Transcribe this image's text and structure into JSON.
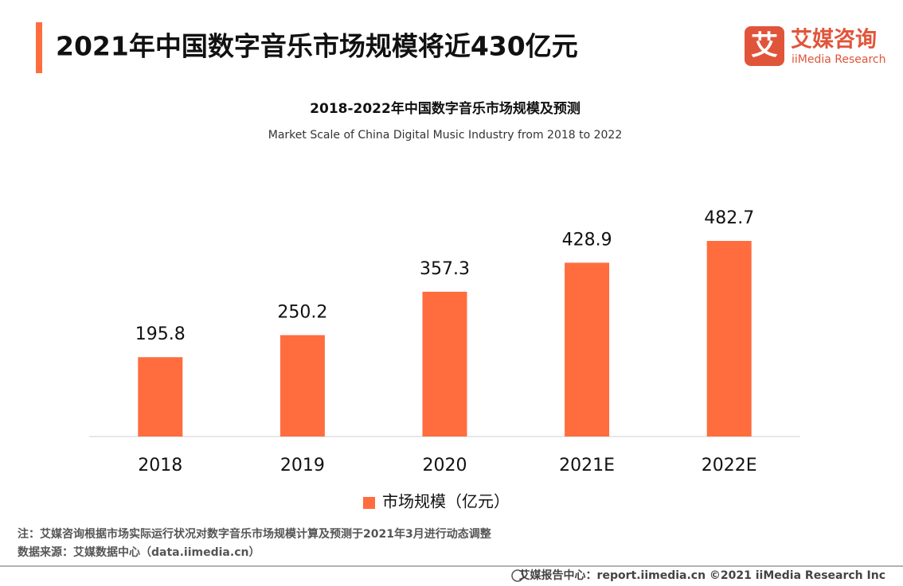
{
  "header": {
    "title": "2021年中国数字音乐市场规模将近430亿元"
  },
  "logo": {
    "icon": "艾",
    "name": "艾媒咨询",
    "english": "iiMedia Research"
  },
  "chart_data": {
    "type": "bar",
    "title": "2018-2022年中国数字音乐市场规模及预测",
    "subtitle": "Market Scale of China Digital Music Industry from 2018 to 2022",
    "categories": [
      "2018",
      "2019",
      "2020",
      "2021E",
      "2022E"
    ],
    "series": [
      {
        "name": "市场规模（亿元）",
        "color": "#ff6d3f",
        "values": [
          195.8,
          250.2,
          357.3,
          428.9,
          482.7
        ]
      }
    ]
  },
  "notes": [
    "注：艾媒咨询根据市场实际运行状况对数字音乐市场规模计算及预测于2021年3月进行动态调整",
    "数据来源：艾媒数据中心（data.iimedia.cn）"
  ],
  "footer": "艾媒报告中心：report.iimedia.cn ©2021  iiMedia Research  Inc"
}
